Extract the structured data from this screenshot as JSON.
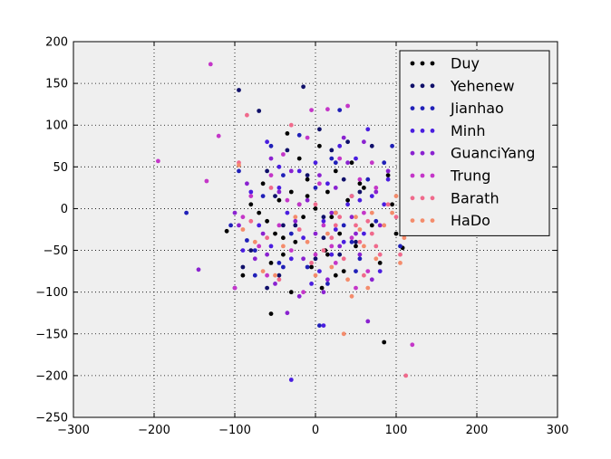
{
  "chart_data": {
    "type": "scatter",
    "title": "",
    "xlabel": "",
    "ylabel": "",
    "xlim": [
      -300,
      300
    ],
    "ylim": [
      -250,
      200
    ],
    "xticks": [
      -300,
      -200,
      -100,
      0,
      100,
      200,
      300
    ],
    "yticks": [
      -250,
      -200,
      -150,
      -100,
      -50,
      0,
      50,
      100,
      150,
      200
    ],
    "xtick_labels": [
      "−300",
      "−200",
      "−100",
      "0",
      "100",
      "200",
      "300"
    ],
    "ytick_labels": [
      "−250",
      "−200",
      "−150",
      "−100",
      "−50",
      "0",
      "50",
      "100",
      "150",
      "200"
    ],
    "grid": true,
    "legend_position": "top-right",
    "series": [
      {
        "name": "Duy",
        "color": "#000000",
        "points": [
          [
            -110,
            -27
          ],
          [
            -90,
            -80
          ],
          [
            -70,
            -5
          ],
          [
            -65,
            30
          ],
          [
            -60,
            -15
          ],
          [
            -55,
            -65
          ],
          [
            -50,
            -30
          ],
          [
            -45,
            10
          ],
          [
            -40,
            -55
          ],
          [
            -35,
            90
          ],
          [
            -30,
            20
          ],
          [
            -25,
            -40
          ],
          [
            -20,
            60
          ],
          [
            -15,
            -10
          ],
          [
            -10,
            35
          ],
          [
            -5,
            -70
          ],
          [
            0,
            0
          ],
          [
            5,
            75
          ],
          [
            8,
            -95
          ],
          [
            12,
            -50
          ],
          [
            15,
            20
          ],
          [
            20,
            -10
          ],
          [
            25,
            45
          ],
          [
            30,
            -30
          ],
          [
            35,
            -75
          ],
          [
            40,
            10
          ],
          [
            45,
            55
          ],
          [
            50,
            -45
          ],
          [
            60,
            25
          ],
          [
            70,
            -20
          ],
          [
            80,
            -65
          ],
          [
            90,
            40
          ],
          [
            95,
            5
          ],
          [
            100,
            -30
          ],
          [
            108,
            -47
          ],
          [
            -55,
            -126
          ],
          [
            -80,
            5
          ],
          [
            -30,
            -100
          ],
          [
            15,
            -55
          ],
          [
            55,
            30
          ],
          [
            85,
            -160
          ],
          [
            -40,
            -35
          ],
          [
            25,
            -80
          ],
          [
            -10,
            15
          ]
        ]
      },
      {
        "name": "Yehenew",
        "color": "#10106a",
        "points": [
          [
            -95,
            142
          ],
          [
            -80,
            -50
          ],
          [
            -70,
            117
          ],
          [
            -60,
            45
          ],
          [
            -50,
            15
          ],
          [
            -45,
            -80
          ],
          [
            -35,
            70
          ],
          [
            -25,
            -20
          ],
          [
            -15,
            146
          ],
          [
            -10,
            40
          ],
          [
            0,
            -60
          ],
          [
            5,
            95
          ],
          [
            10,
            -35
          ],
          [
            20,
            70
          ],
          [
            25,
            -5
          ],
          [
            30,
            -55
          ],
          [
            40,
            80
          ],
          [
            50,
            -40
          ],
          [
            55,
            20
          ],
          [
            70,
            75
          ],
          [
            -90,
            -70
          ],
          [
            -60,
            -95
          ],
          [
            -40,
            -20
          ],
          [
            -20,
            5
          ],
          [
            10,
            -10
          ],
          [
            35,
            35
          ]
        ]
      },
      {
        "name": "Jianhao",
        "color": "#2020b8",
        "points": [
          [
            -160,
            -5
          ],
          [
            -105,
            -20
          ],
          [
            -95,
            45
          ],
          [
            -85,
            -38
          ],
          [
            -75,
            -80
          ],
          [
            -65,
            15
          ],
          [
            -55,
            75
          ],
          [
            -45,
            -65
          ],
          [
            -40,
            40
          ],
          [
            -30,
            -30
          ],
          [
            -20,
            88
          ],
          [
            -10,
            -70
          ],
          [
            0,
            25
          ],
          [
            5,
            -140
          ],
          [
            15,
            -90
          ],
          [
            25,
            55
          ],
          [
            35,
            -20
          ],
          [
            45,
            15
          ],
          [
            55,
            -60
          ],
          [
            65,
            35
          ],
          [
            75,
            -15
          ],
          [
            85,
            55
          ],
          [
            95,
            75
          ],
          [
            105,
            -45
          ],
          [
            -75,
            -50
          ],
          [
            -40,
            -70
          ],
          [
            20,
            60
          ],
          [
            45,
            -40
          ],
          [
            30,
            118
          ],
          [
            50,
            -75
          ]
        ]
      },
      {
        "name": "Minh",
        "color": "#4a1ee0",
        "points": [
          [
            -100,
            -95
          ],
          [
            -90,
            -50
          ],
          [
            -80,
            20
          ],
          [
            -70,
            -20
          ],
          [
            -60,
            80
          ],
          [
            -55,
            -45
          ],
          [
            -45,
            25
          ],
          [
            -35,
            -5
          ],
          [
            -30,
            -60
          ],
          [
            -20,
            45
          ],
          [
            -15,
            -35
          ],
          [
            -5,
            -90
          ],
          [
            0,
            55
          ],
          [
            10,
            -15
          ],
          [
            15,
            30
          ],
          [
            20,
            -55
          ],
          [
            30,
            75
          ],
          [
            35,
            -40
          ],
          [
            40,
            5
          ],
          [
            50,
            60
          ],
          [
            60,
            -30
          ],
          [
            65,
            95
          ],
          [
            70,
            15
          ],
          [
            80,
            -75
          ],
          [
            90,
            35
          ],
          [
            -30,
            -205
          ],
          [
            10,
            -140
          ],
          [
            -45,
            50
          ],
          [
            5,
            -75
          ],
          [
            25,
            -25
          ],
          [
            55,
            10
          ],
          [
            85,
            5
          ]
        ]
      },
      {
        "name": "GuanciYang",
        "color": "#8a22d0",
        "points": [
          [
            -145,
            -73
          ],
          [
            -100,
            -5
          ],
          [
            -95,
            -20
          ],
          [
            -85,
            30
          ],
          [
            -75,
            -60
          ],
          [
            -65,
            -30
          ],
          [
            -55,
            60
          ],
          [
            -50,
            -90
          ],
          [
            -45,
            20
          ],
          [
            -35,
            -125
          ],
          [
            -30,
            45
          ],
          [
            -25,
            -15
          ],
          [
            -15,
            -60
          ],
          [
            -10,
            10
          ],
          [
            0,
            -30
          ],
          [
            5,
            40
          ],
          [
            10,
            -100
          ],
          [
            20,
            -5
          ],
          [
            25,
            25
          ],
          [
            30,
            -45
          ],
          [
            40,
            55
          ],
          [
            45,
            -10
          ],
          [
            55,
            -55
          ],
          [
            60,
            80
          ],
          [
            65,
            -135
          ],
          [
            75,
            20
          ],
          [
            80,
            -20
          ],
          [
            90,
            45
          ],
          [
            -60,
            -55
          ],
          [
            -20,
            -105
          ],
          [
            15,
            -85
          ],
          [
            35,
            85
          ],
          [
            50,
            -30
          ],
          [
            70,
            -85
          ]
        ]
      },
      {
        "name": "Trung",
        "color": "#c436c8",
        "points": [
          [
            -195,
            57
          ],
          [
            -130,
            173
          ],
          [
            -120,
            87
          ],
          [
            -135,
            33
          ],
          [
            -100,
            -95
          ],
          [
            -90,
            -10
          ],
          [
            -80,
            15
          ],
          [
            -70,
            -45
          ],
          [
            -60,
            -80
          ],
          [
            -55,
            40
          ],
          [
            -45,
            -20
          ],
          [
            -40,
            65
          ],
          [
            -30,
            -50
          ],
          [
            -20,
            5
          ],
          [
            -15,
            -100
          ],
          [
            -5,
            118
          ],
          [
            5,
            30
          ],
          [
            10,
            -20
          ],
          [
            15,
            119
          ],
          [
            25,
            -65
          ],
          [
            30,
            60
          ],
          [
            40,
            123
          ],
          [
            45,
            -35
          ],
          [
            55,
            35
          ],
          [
            60,
            -5
          ],
          [
            65,
            -75
          ],
          [
            70,
            55
          ],
          [
            120,
            -163
          ],
          [
            -10,
            85
          ],
          [
            20,
            -45
          ],
          [
            50,
            -95
          ],
          [
            75,
            25
          ],
          [
            -35,
            10
          ],
          [
            0,
            -55
          ]
        ]
      },
      {
        "name": "Barath",
        "color": "#f06a8c",
        "points": [
          [
            -85,
            112
          ],
          [
            -95,
            55
          ],
          [
            -80,
            -15
          ],
          [
            -60,
            -35
          ],
          [
            -45,
            -85
          ],
          [
            -30,
            100
          ],
          [
            -20,
            -25
          ],
          [
            -5,
            -65
          ],
          [
            0,
            5
          ],
          [
            10,
            -50
          ],
          [
            20,
            -35
          ],
          [
            30,
            -10
          ],
          [
            35,
            -60
          ],
          [
            45,
            15
          ],
          [
            50,
            -20
          ],
          [
            55,
            -40
          ],
          [
            60,
            -80
          ],
          [
            65,
            -15
          ],
          [
            70,
            -30
          ],
          [
            80,
            -55
          ],
          [
            90,
            5
          ],
          [
            100,
            -10
          ],
          [
            105,
            -55
          ],
          [
            112,
            -200
          ],
          [
            -55,
            25
          ],
          [
            25,
            -20
          ],
          [
            75,
            -45
          ],
          [
            115,
            -5
          ]
        ]
      },
      {
        "name": "HaDo",
        "color": "#f48c6c",
        "points": [
          [
            -95,
            52
          ],
          [
            -90,
            -25
          ],
          [
            -75,
            -40
          ],
          [
            -65,
            -75
          ],
          [
            -50,
            -80
          ],
          [
            -40,
            -45
          ],
          [
            -25,
            -10
          ],
          [
            -10,
            -40
          ],
          [
            0,
            -80
          ],
          [
            15,
            -30
          ],
          [
            25,
            -5
          ],
          [
            35,
            -150
          ],
          [
            40,
            -85
          ],
          [
            50,
            -10
          ],
          [
            55,
            -25
          ],
          [
            60,
            -45
          ],
          [
            65,
            -95
          ],
          [
            70,
            -5
          ],
          [
            75,
            -60
          ],
          [
            85,
            -20
          ],
          [
            95,
            -5
          ],
          [
            100,
            15
          ],
          [
            105,
            -65
          ],
          [
            110,
            -35
          ],
          [
            120,
            -10
          ],
          [
            130,
            -25
          ],
          [
            45,
            -105
          ],
          [
            20,
            -70
          ]
        ]
      }
    ]
  }
}
